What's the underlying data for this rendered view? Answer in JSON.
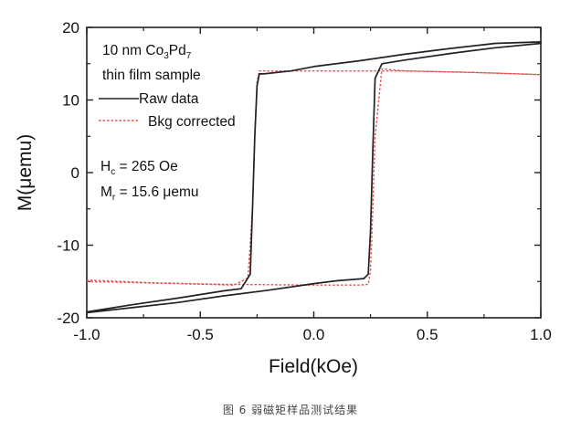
{
  "chart_data": {
    "type": "line",
    "xlabel": "Field(kOe)",
    "ylabel": "M(μemu)",
    "xlim": [
      -1.0,
      1.0
    ],
    "ylim": [
      -20,
      20
    ],
    "xticks": [
      "-1.0",
      "-0.5",
      "0.0",
      "0.5",
      "1.0"
    ],
    "yticks": [
      "-20",
      "-10",
      "0",
      "10",
      "20"
    ],
    "grid": false,
    "legend_placement": "top-left",
    "annotations": {
      "sample_line1_prefix": "10 nm Co",
      "sample_sub1": "3",
      "sample_mid": "Pd",
      "sample_sub2": "7",
      "sample_line2": "thin film sample",
      "hc_label": "H",
      "hc_sub": "c",
      "hc_value": " = 265 Oe",
      "mr_label": "M",
      "mr_sub": "r",
      "mr_value": " = 15.6 μemu"
    },
    "series": [
      {
        "name": "Raw data",
        "color": "#222222",
        "style": "solid",
        "x": [
          -1.0,
          -0.8,
          -0.6,
          -0.4,
          -0.32,
          -0.28,
          -0.27,
          -0.26,
          -0.25,
          -0.24,
          -0.22,
          -0.1,
          0.0,
          0.2,
          0.4,
          0.6,
          0.8,
          1.0,
          1.0,
          0.8,
          0.6,
          0.4,
          0.3,
          0.27,
          0.26,
          0.25,
          0.24,
          0.22,
          0.1,
          0.0,
          -0.2,
          -0.4,
          -0.6,
          -0.8,
          -1.0
        ],
        "y": [
          -19.2,
          -18.2,
          -17.3,
          -16.3,
          -16.0,
          -14.0,
          -5.0,
          5.0,
          12.0,
          13.6,
          13.6,
          14.0,
          14.6,
          15.4,
          16.3,
          17.1,
          17.8,
          18.0,
          17.8,
          17.2,
          16.4,
          15.5,
          15.0,
          13.0,
          3.0,
          -8.0,
          -14.0,
          -14.6,
          -14.9,
          -15.3,
          -16.2,
          -17.0,
          -17.9,
          -18.6,
          -19.3
        ]
      },
      {
        "name": "Bkg corrected",
        "color": "#e0524f",
        "style": "dotted",
        "x": [
          -1.0,
          -0.6,
          -0.35,
          -0.29,
          -0.27,
          -0.26,
          -0.25,
          -0.24,
          -0.2,
          0.0,
          0.4,
          0.7,
          1.0,
          1.0,
          0.7,
          0.4,
          0.3,
          0.27,
          0.26,
          0.25,
          0.24,
          0.2,
          0.0,
          -0.4,
          -0.7,
          -1.0
        ],
        "y": [
          -15.0,
          -15.3,
          -15.5,
          -14.5,
          -5.0,
          5.0,
          12.5,
          14.0,
          14.0,
          14.0,
          14.0,
          13.8,
          13.5,
          13.5,
          13.8,
          14.0,
          14.3,
          5.0,
          -5.0,
          -13.5,
          -15.4,
          -15.5,
          -15.5,
          -15.4,
          -15.2,
          -14.8
        ]
      }
    ]
  },
  "caption": "图 6 弱磁矩样品测试结果"
}
